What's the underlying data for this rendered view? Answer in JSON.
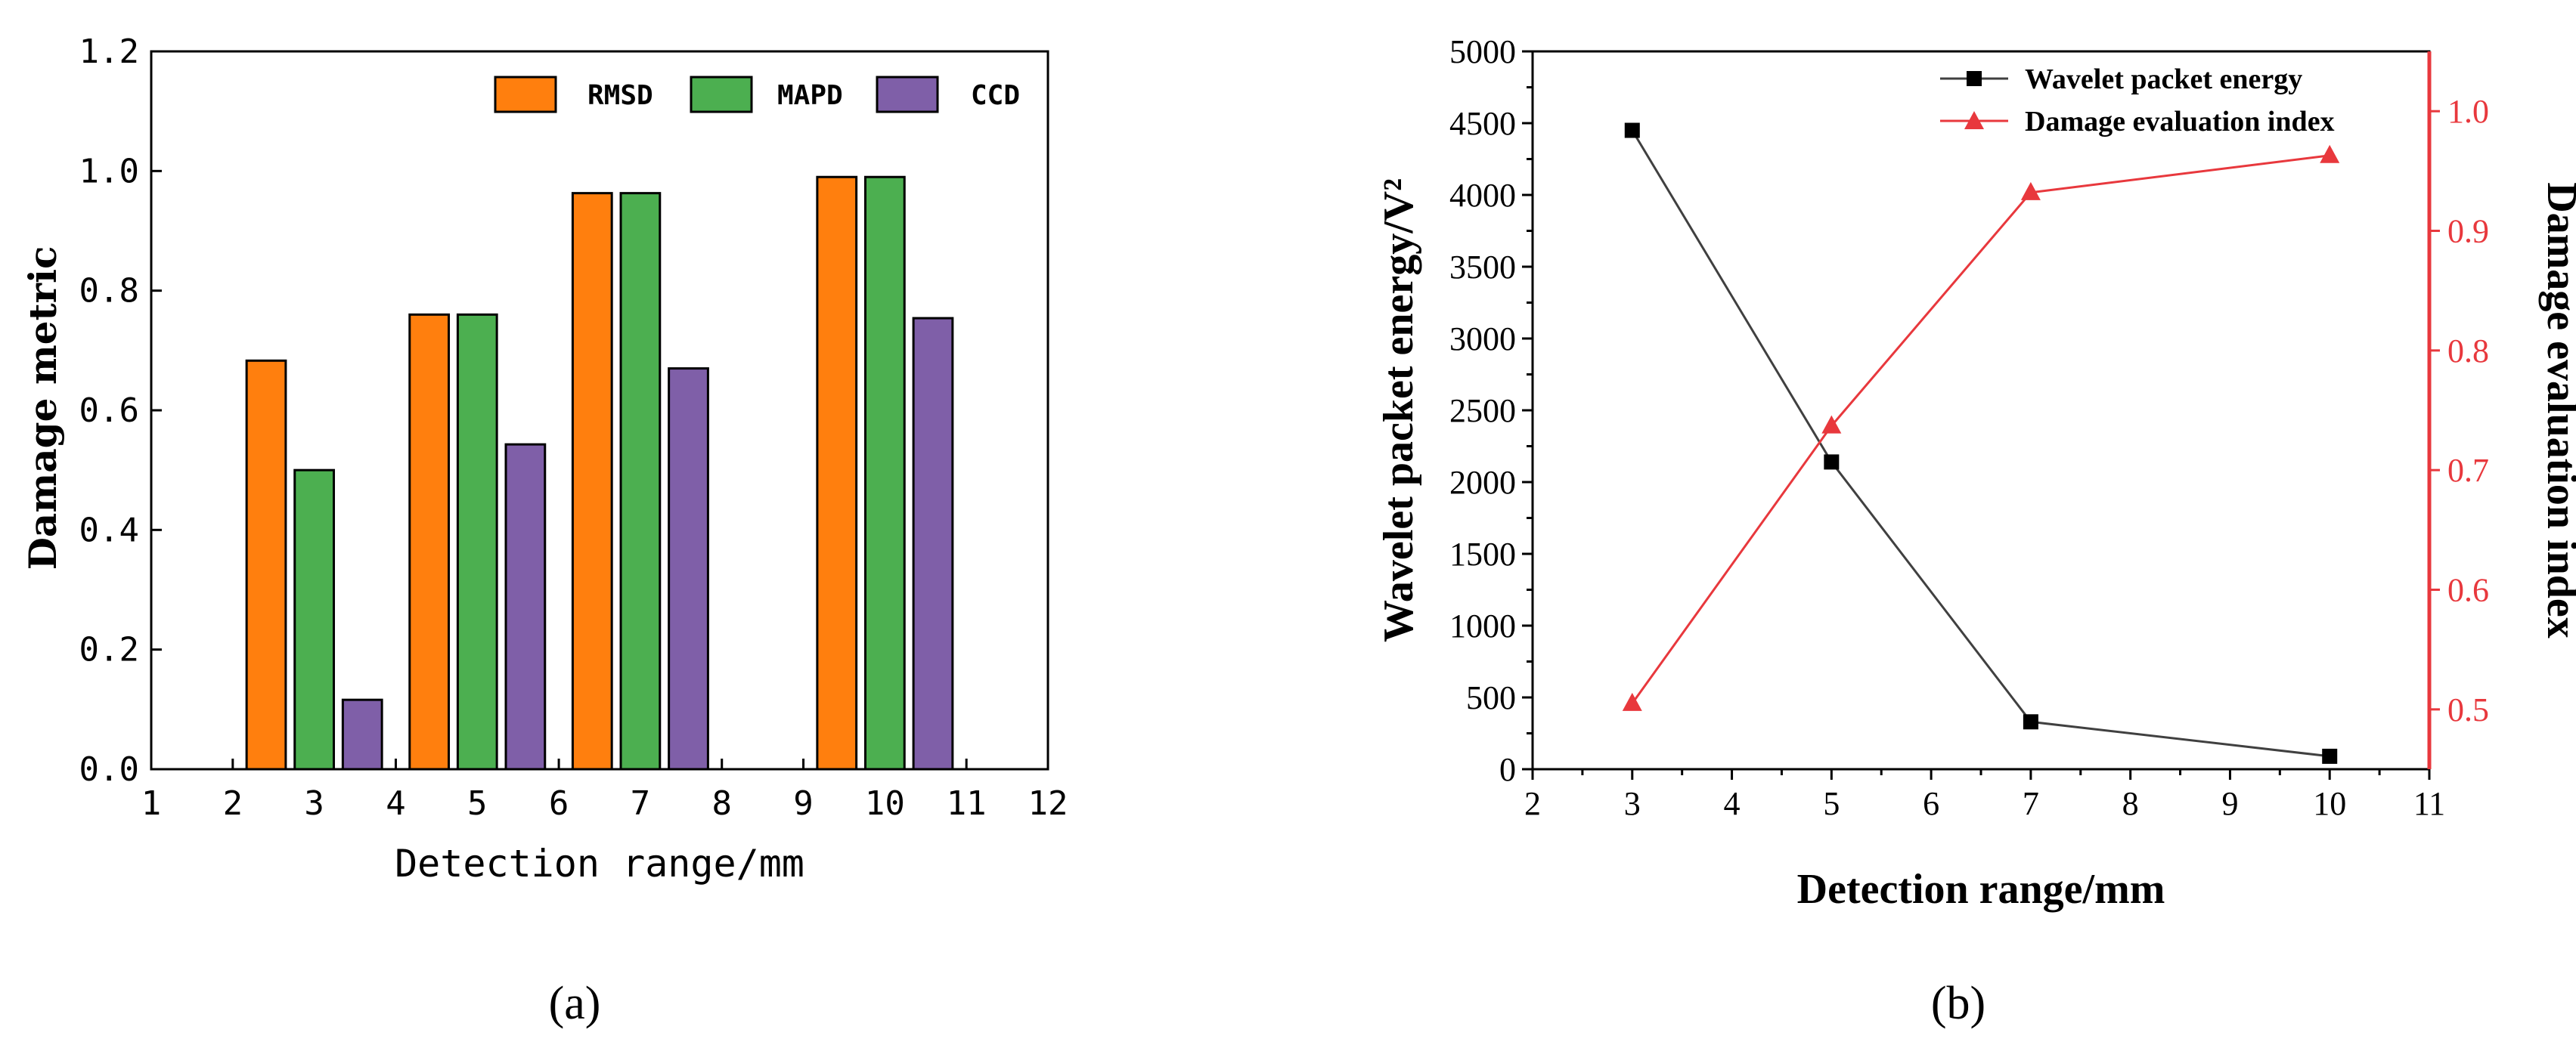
{
  "chart_data": [
    {
      "type": "bar",
      "panel_label": "(a)",
      "xlabel": "Detection range/mm",
      "ylabel": "Damage metric",
      "xlim": [
        1,
        12
      ],
      "ylim": [
        0,
        1.2
      ],
      "x_ticks": [
        "1",
        "2",
        "3",
        "4",
        "5",
        "6",
        "7",
        "8",
        "9",
        "10",
        "11",
        "12"
      ],
      "y_ticks": [
        "0.0",
        "0.2",
        "0.4",
        "0.6",
        "0.8",
        "1.0",
        "1.2"
      ],
      "legend_position": "top-right",
      "categories": [
        3,
        5,
        7,
        10
      ],
      "series": [
        {
          "name": "RMSD",
          "color": "#ff7f0e",
          "values": [
            0.683,
            0.76,
            0.963,
            0.99
          ]
        },
        {
          "name": "MAPD",
          "color": "#4caf50",
          "values": [
            0.5,
            0.76,
            0.963,
            0.99
          ]
        },
        {
          "name": "CCD",
          "color": "#7f5fa8",
          "values": [
            0.116,
            0.543,
            0.67,
            0.754
          ]
        }
      ]
    },
    {
      "type": "line",
      "panel_label": "(b)",
      "xlabel": "Detection range/mm",
      "ylabel": "Wavelet packet energy/V²",
      "y2label": "Damage evaluation index",
      "xlim": [
        2,
        11
      ],
      "ylim": [
        0,
        5000
      ],
      "y2lim": [
        0.45,
        1.05
      ],
      "x_ticks": [
        "2",
        "3",
        "4",
        "5",
        "6",
        "7",
        "8",
        "9",
        "10",
        "11"
      ],
      "y_ticks": [
        "0",
        "500",
        "1000",
        "1500",
        "2000",
        "2500",
        "3000",
        "3500",
        "4000",
        "4500",
        "5000"
      ],
      "y2_ticks": [
        "0.5",
        "0.6",
        "0.7",
        "0.8",
        "0.9",
        "1.0"
      ],
      "legend_position": "top-right",
      "series": [
        {
          "name": "Wavelet packet energy",
          "axis": "left",
          "color": "#404040",
          "marker": "square",
          "x": [
            3,
            5,
            7,
            10
          ],
          "y": [
            4450,
            2140,
            330,
            90
          ]
        },
        {
          "name": "Damage evaluation index",
          "axis": "right",
          "color": "#e8383d",
          "marker": "triangle",
          "x": [
            3,
            5,
            7,
            10
          ],
          "y": [
            0.505,
            0.737,
            0.932,
            0.963
          ]
        }
      ]
    }
  ]
}
